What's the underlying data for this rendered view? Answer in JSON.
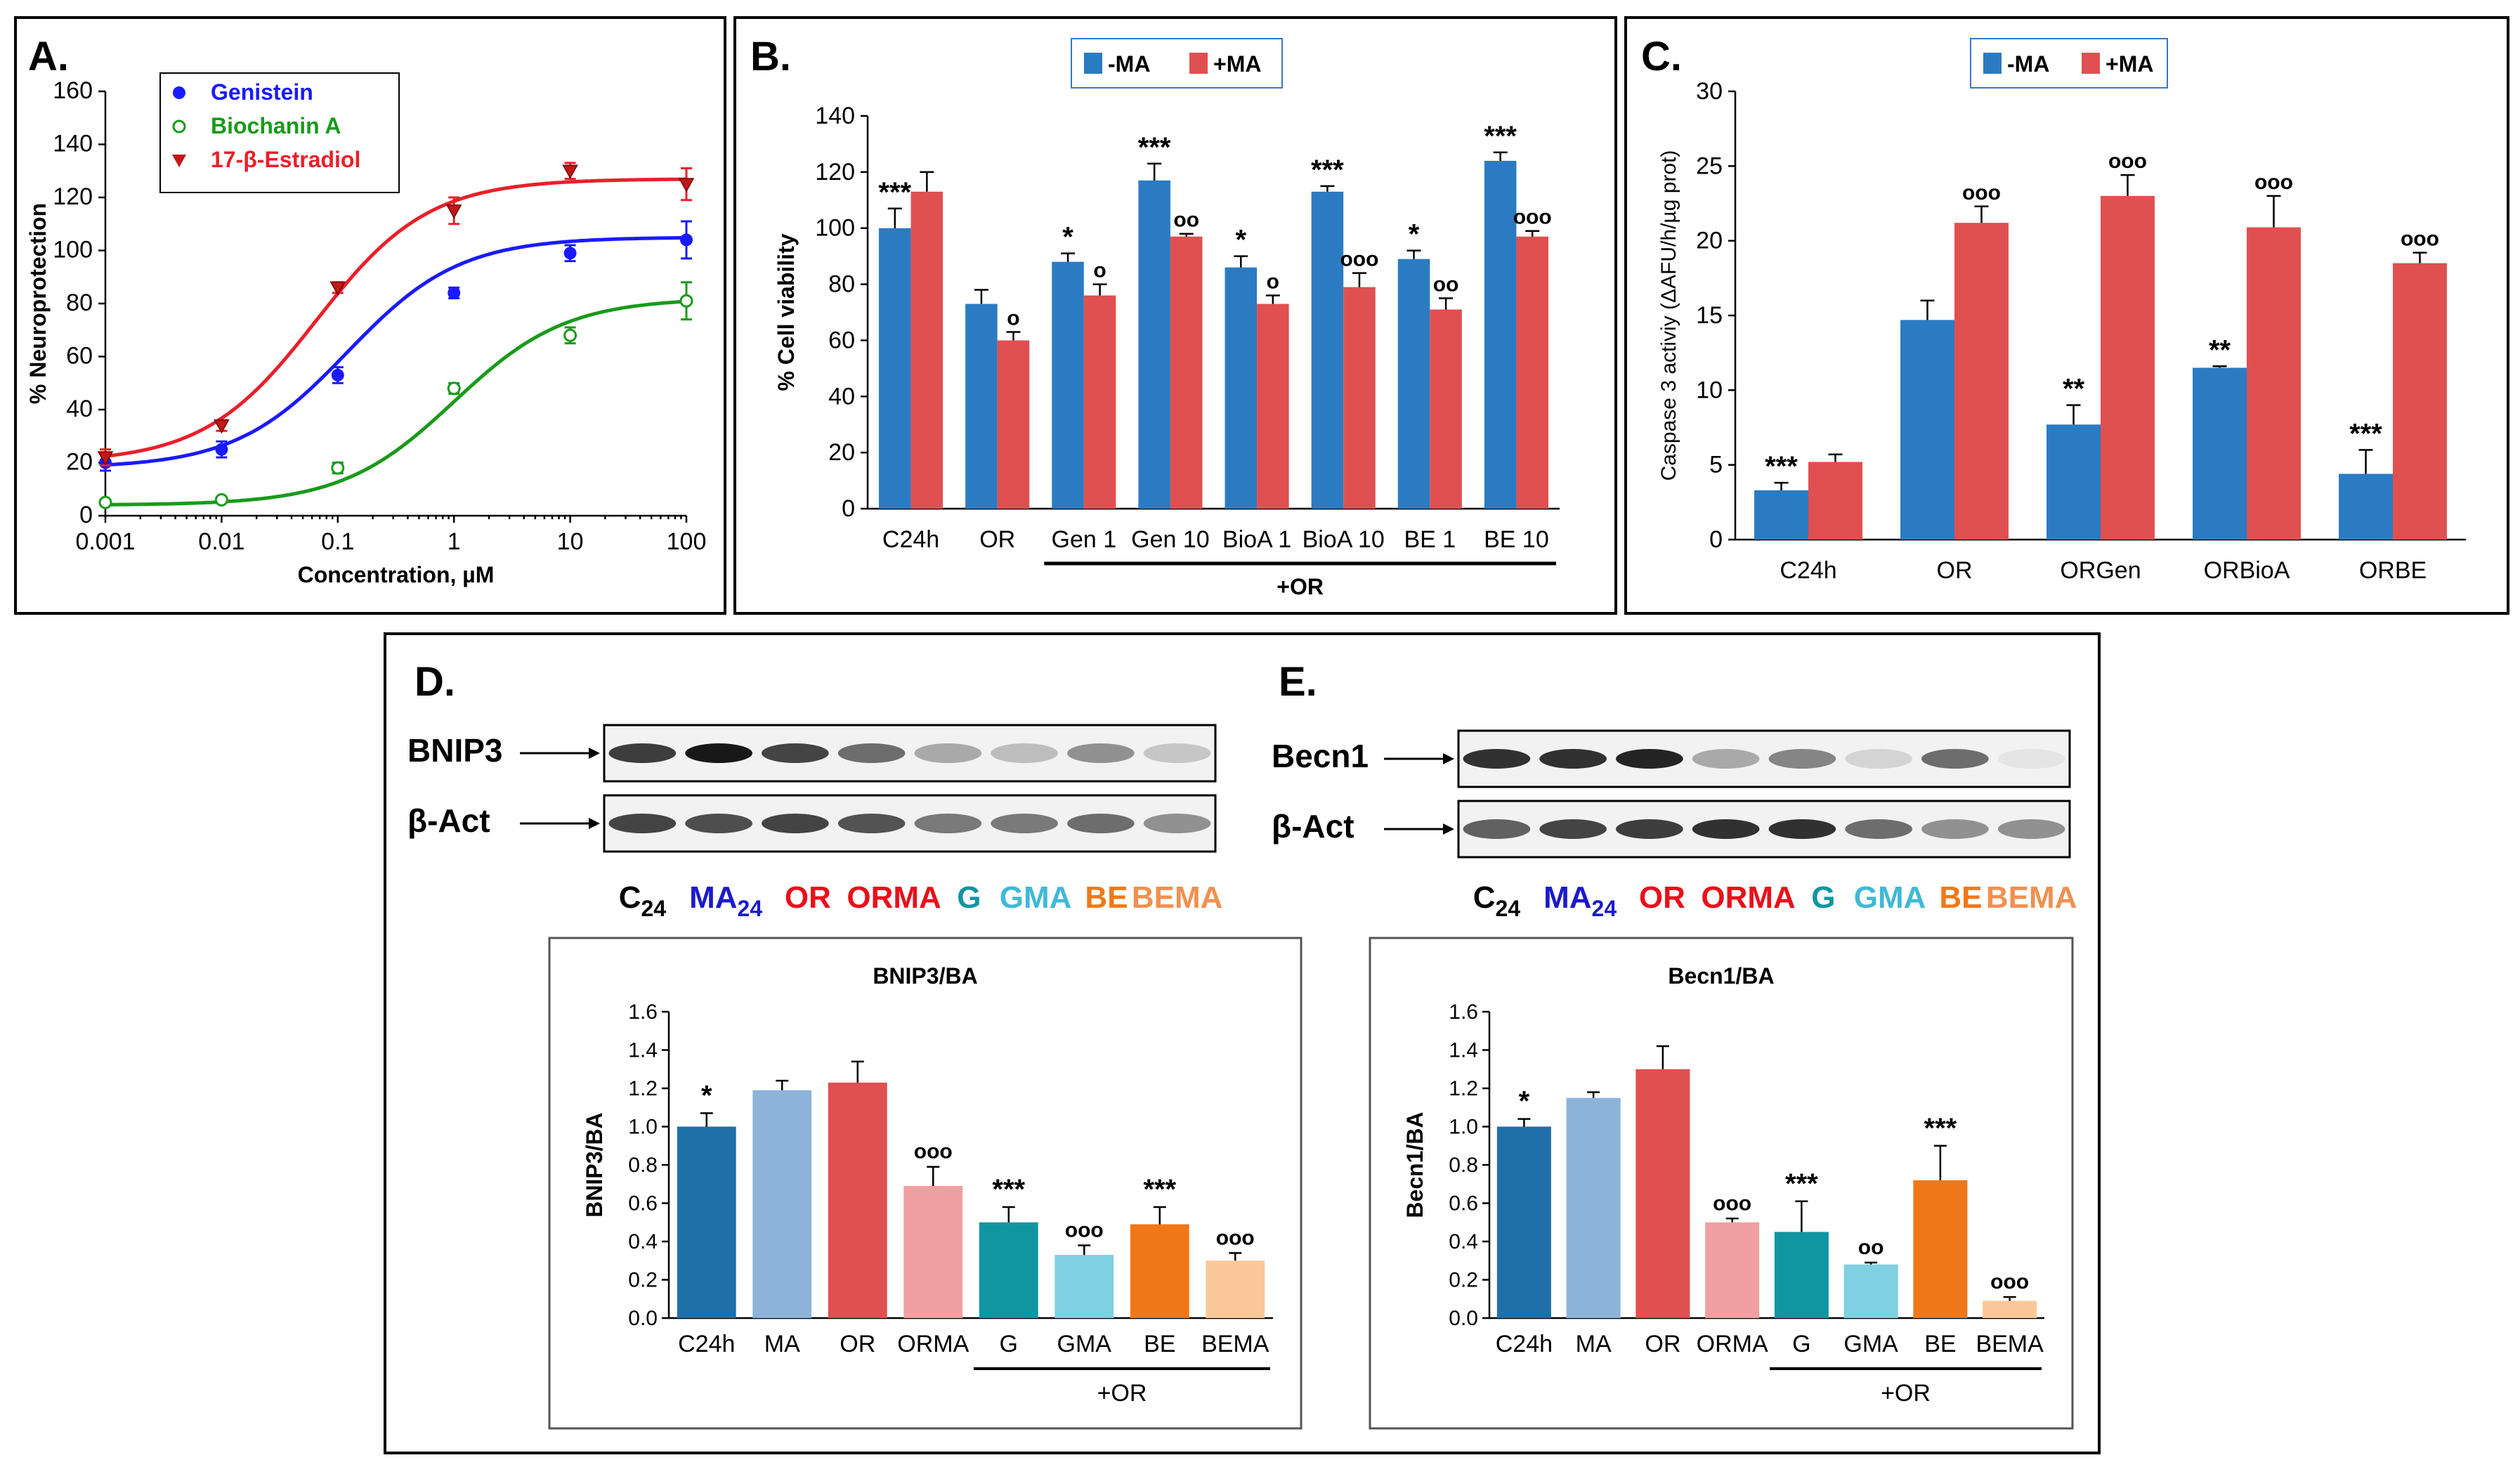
{
  "chart_data": [
    {
      "panel": "A.",
      "type": "scatter",
      "xlabel": "Concentration, µM",
      "ylabel": "% Neuroprotection",
      "x_scale": "log",
      "xlim": [
        0.001,
        100
      ],
      "ylim": [
        0,
        160
      ],
      "xticks": [
        "0.001",
        "0.01",
        "0.1",
        "1",
        "10",
        "100"
      ],
      "yticks": [
        "0",
        "20",
        "40",
        "60",
        "80",
        "100",
        "120",
        "140",
        "160"
      ],
      "legend": "top-left",
      "series": [
        {
          "name": "Genistein",
          "color": "#1a1aff",
          "marker": "circle-filled",
          "x": [
            0.001,
            0.01,
            0.1,
            1,
            10,
            100
          ],
          "y": [
            20,
            25,
            53,
            84,
            99,
            104
          ],
          "err": [
            3,
            3,
            3,
            2,
            3,
            7
          ]
        },
        {
          "name": "Biochanin A",
          "color": "#1a9a1a",
          "marker": "circle-open",
          "x": [
            0.001,
            0.01,
            0.1,
            1,
            10,
            100
          ],
          "y": [
            5,
            6,
            18,
            48,
            68,
            81
          ],
          "err": [
            1,
            1,
            2,
            2,
            3,
            7
          ]
        },
        {
          "name": "17-β-Estradiol",
          "color": "#e8202a",
          "marker": "triangle-down",
          "x": [
            0.001,
            0.01,
            0.1,
            1,
            10,
            100
          ],
          "y": [
            22,
            34,
            86,
            115,
            130,
            125
          ],
          "err": [
            3,
            2,
            2,
            5,
            3,
            6
          ]
        }
      ],
      "fits": [
        {
          "series": "Genistein",
          "bottom": 18,
          "top": 105,
          "ec50": 0.12
        },
        {
          "series": "Biochanin A",
          "bottom": 4,
          "top": 82,
          "ec50": 1.0
        },
        {
          "series": "17-β-Estradiol",
          "bottom": 20,
          "top": 127,
          "ec50": 0.065
        }
      ]
    },
    {
      "panel": "B.",
      "type": "bar",
      "ylabel": "% Cell viability",
      "ylim": [
        0,
        140
      ],
      "yticks": [
        "0",
        "20",
        "40",
        "60",
        "80",
        "100",
        "120",
        "140"
      ],
      "categories": [
        "C24h",
        "OR",
        "Gen 1",
        "Gen 10",
        "BioA 1",
        "BioA 10",
        "BE 1",
        "BE 10"
      ],
      "group_label": "+OR",
      "legend": "top-center",
      "series": [
        {
          "name": "-MA",
          "color": "#2b7bc3",
          "values": [
            100,
            73,
            88,
            117,
            86,
            113,
            89,
            124
          ],
          "err": [
            7,
            5,
            3,
            6,
            4,
            2,
            3,
            3
          ],
          "sig": [
            "***",
            "",
            "*",
            "***",
            "*",
            "***",
            "*",
            "***"
          ]
        },
        {
          "name": "+MA",
          "color": "#e05050",
          "values": [
            113,
            60,
            76,
            97,
            73,
            79,
            71,
            97
          ],
          "err": [
            7,
            3,
            4,
            1,
            3,
            5,
            4,
            2
          ],
          "sig": [
            "",
            "o",
            "o",
            "oo",
            "o",
            "ooo",
            "oo",
            "ooo"
          ]
        }
      ]
    },
    {
      "panel": "C.",
      "type": "bar",
      "ylabel": "Caspase 3 activiy (ΔAFU/h/µg prot)",
      "ylim": [
        0,
        30
      ],
      "yticks": [
        "0",
        "5",
        "10",
        "15",
        "20",
        "25",
        "30"
      ],
      "categories": [
        "C24h",
        "OR",
        "ORGen",
        "ORBioA",
        "ORBE"
      ],
      "legend": "top-center",
      "series": [
        {
          "name": "-MA",
          "color": "#2b7bc3",
          "values": [
            3.3,
            14.7,
            7.7,
            11.5,
            4.4
          ],
          "err": [
            0.5,
            1.3,
            1.3,
            0.1,
            1.6
          ],
          "sig": [
            "***",
            "",
            "**",
            "**",
            "***"
          ]
        },
        {
          "name": "+MA",
          "color": "#e05050",
          "values": [
            5.2,
            21.2,
            23.0,
            20.9,
            18.5
          ],
          "err": [
            0.5,
            1.1,
            1.4,
            2.1,
            0.7
          ],
          "sig": [
            "",
            "ooo",
            "ooo",
            "ooo",
            "ooo"
          ]
        }
      ]
    },
    {
      "panel": "D.",
      "type": "bar",
      "title": "BNIP3/BA",
      "ylabel": "BNIP3/BA",
      "ylim": [
        0,
        1.6
      ],
      "yticks": [
        "0.0",
        "0.2",
        "0.4",
        "0.6",
        "0.8",
        "1.0",
        "1.2",
        "1.4",
        "1.6"
      ],
      "categories": [
        "C24h",
        "MA",
        "OR",
        "ORMA",
        "G",
        "GMA",
        "BE",
        "BEMA"
      ],
      "group_label": "+OR",
      "values": [
        1.0,
        1.19,
        1.23,
        0.69,
        0.5,
        0.33,
        0.49,
        0.3
      ],
      "err": [
        0.07,
        0.05,
        0.11,
        0.1,
        0.08,
        0.05,
        0.09,
        0.04
      ],
      "colors": [
        "#1f6fa8",
        "#8db3da",
        "#e05050",
        "#f0a0a0",
        "#1096a0",
        "#7fd0e0",
        "#f07818",
        "#fbc89a"
      ],
      "sig": [
        "*",
        "",
        "",
        "ooo",
        "***",
        "ooo",
        "***",
        "ooo"
      ]
    },
    {
      "panel": "E.",
      "type": "bar",
      "title": "Becn1/BA",
      "ylabel": "Becn1/BA",
      "ylim": [
        0,
        1.6
      ],
      "yticks": [
        "0.0",
        "0.2",
        "0.4",
        "0.6",
        "0.8",
        "1.0",
        "1.2",
        "1.4",
        "1.6"
      ],
      "categories": [
        "C24h",
        "MA",
        "OR",
        "ORMA",
        "G",
        "GMA",
        "BE",
        "BEMA"
      ],
      "group_label": "+OR",
      "values": [
        1.0,
        1.15,
        1.3,
        0.5,
        0.45,
        0.28,
        0.72,
        0.09
      ],
      "err": [
        0.04,
        0.03,
        0.12,
        0.02,
        0.16,
        0.01,
        0.18,
        0.02
      ],
      "colors": [
        "#1f6fa8",
        "#8db3da",
        "#e05050",
        "#f0a0a0",
        "#1096a0",
        "#7fd0e0",
        "#f07818",
        "#fbc89a"
      ],
      "sig": [
        "*",
        "",
        "",
        "ooo",
        "***",
        "oo",
        "***",
        "ooo"
      ]
    }
  ],
  "blots": {
    "d": {
      "rows": [
        {
          "label": "BNIP3",
          "intensities": [
            0.75,
            0.9,
            0.72,
            0.55,
            0.3,
            0.22,
            0.4,
            0.18
          ]
        },
        {
          "label": "β-Act",
          "intensities": [
            0.72,
            0.68,
            0.72,
            0.66,
            0.5,
            0.5,
            0.55,
            0.4
          ]
        }
      ]
    },
    "e": {
      "rows": [
        {
          "label": "Becn1",
          "intensities": [
            0.8,
            0.8,
            0.85,
            0.3,
            0.45,
            0.12,
            0.55,
            0.05
          ]
        },
        {
          "label": "β-Act",
          "intensities": [
            0.6,
            0.72,
            0.75,
            0.8,
            0.8,
            0.55,
            0.4,
            0.4
          ]
        }
      ]
    },
    "lanes": [
      {
        "text": "C",
        "sub": "24",
        "color": "#000000"
      },
      {
        "text": "MA",
        "sub": "24",
        "color": "#1a1acc"
      },
      {
        "text": "OR",
        "sub": "",
        "color": "#e8101a"
      },
      {
        "text": "ORMA",
        "sub": "",
        "color": "#e8101a"
      },
      {
        "text": "G",
        "sub": "",
        "color": "#1096a0"
      },
      {
        "text": "GMA",
        "sub": "",
        "color": "#40b8d8"
      },
      {
        "text": "BE",
        "sub": "",
        "color": "#f07818"
      },
      {
        "text": "BEMA",
        "sub": "",
        "color": "#f09050"
      }
    ]
  }
}
